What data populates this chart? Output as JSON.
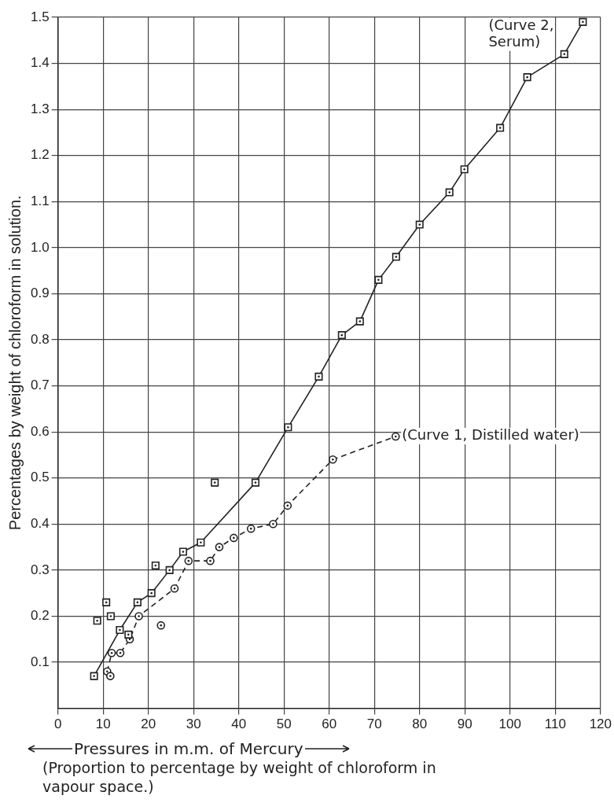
{
  "chart_data": {
    "type": "line",
    "xlabel": "Pressures in m.m. of Mercury",
    "ylabel": "Percentages by weight of chloroform in solution.",
    "annotations": [
      "(Proportion to percentage by weight of chloroform in vapour space.)"
    ],
    "series": [
      {
        "name": "(Curve 2, Serum)",
        "color": "#222222",
        "marker": "square",
        "line_style": "solid",
        "x": [
          8.0,
          13.7,
          17.6,
          20.7,
          24.7,
          27.7,
          31.6,
          43.7,
          50.9,
          57.7,
          62.8,
          66.8,
          70.9,
          74.8,
          80.0,
          86.6,
          89.9,
          97.8,
          103.8,
          112.0,
          116.1
        ],
        "values": [
          0.07,
          0.17,
          0.23,
          0.25,
          0.3,
          0.34,
          0.36,
          0.49,
          0.61,
          0.72,
          0.81,
          0.84,
          0.93,
          0.98,
          1.05,
          1.12,
          1.17,
          1.26,
          1.37,
          1.42,
          1.49
        ]
      },
      {
        "type": "scatter",
        "color": "#222222",
        "marker": "square",
        "x": [
          8.7,
          10.7,
          11.7,
          15.6,
          21.6,
          34.7
        ],
        "values": [
          0.19,
          0.23,
          0.2,
          0.16,
          0.31,
          0.49
        ]
      },
      {
        "name": "(Curve 1, Distilled water)",
        "color": "#222222",
        "marker": "circle",
        "line_style": "dashed",
        "x": [
          10.9,
          11.9,
          13.8,
          15.9,
          17.9,
          25.8,
          28.9,
          33.7,
          35.7,
          38.9,
          42.7,
          47.6,
          50.8,
          60.8,
          74.7
        ],
        "values": [
          0.08,
          0.12,
          0.12,
          0.15,
          0.2,
          0.26,
          0.32,
          0.32,
          0.35,
          0.37,
          0.39,
          0.4,
          0.44,
          0.54,
          0.59
        ]
      },
      {
        "type": "scatter",
        "color": "#222222",
        "marker": "circle",
        "x": [
          11.6,
          22.8
        ],
        "values": [
          0.07,
          0.18
        ]
      }
    ],
    "xlim": [
      0,
      120
    ],
    "xticks": [
      0,
      10,
      20,
      30,
      40,
      50,
      60,
      70,
      80,
      90,
      100,
      110,
      120
    ],
    "ylim": [
      0,
      1.5
    ],
    "yticks": [
      0.1,
      0.2,
      0.3,
      0.4,
      0.5,
      0.6,
      0.7,
      0.8,
      0.9,
      {
        "value": 1,
        "label": "1.0"
      },
      1.1,
      1.2,
      1.3,
      1.4,
      1.5
    ],
    "grid": true,
    "legend": false
  }
}
